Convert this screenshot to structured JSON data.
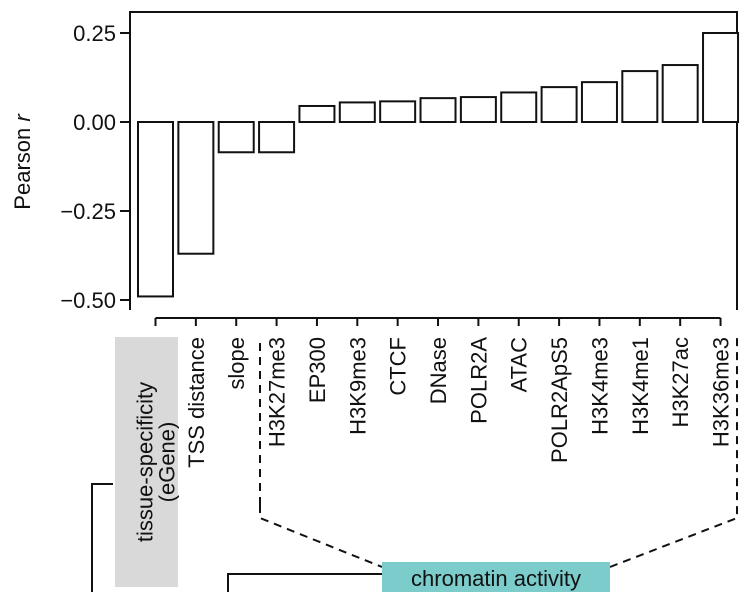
{
  "chart_data": {
    "type": "bar",
    "categories": [
      "tissue-specificity (eGene)",
      "TSS distance",
      "slope",
      "H3K27me3",
      "EP300",
      "H3K9me3",
      "CTCF",
      "DNase",
      "POLR2A",
      "ATAC",
      "POLR2ApS5",
      "H3K4me3",
      "H3K4me1",
      "H3K27ac",
      "H3K36me3"
    ],
    "category_lines": [
      [
        "tissue-specificity",
        "(eGene)"
      ],
      [
        "TSS distance"
      ],
      [
        "slope"
      ],
      [
        "H3K27me3"
      ],
      [
        "EP300"
      ],
      [
        "H3K9me3"
      ],
      [
        "CTCF"
      ],
      [
        "DNase"
      ],
      [
        "POLR2A"
      ],
      [
        "ATAC"
      ],
      [
        "POLR2ApS5"
      ],
      [
        "H3K4me3"
      ],
      [
        "H3K4me1"
      ],
      [
        "H3K27ac"
      ],
      [
        "H3K36me3"
      ]
    ],
    "values": [
      -0.49,
      -0.37,
      -0.085,
      -0.085,
      0.045,
      0.055,
      0.058,
      0.067,
      0.07,
      0.083,
      0.098,
      0.112,
      0.143,
      0.16,
      0.25
    ],
    "title": "",
    "xlabel": "",
    "ylabel": "Pearson r",
    "ylabel_parts": [
      "Pearson ",
      "r"
    ],
    "ylim": [
      -0.52,
      0.27
    ],
    "yticks": [
      -0.5,
      -0.25,
      0.0,
      0.25
    ],
    "ytick_labels": [
      "−0.50",
      "−0.25",
      "0.00",
      "0.25"
    ],
    "grid": false,
    "legend": "none",
    "bar_fill": "#ffffff",
    "bar_stroke": "#111111",
    "groups": [
      {
        "label": "tissue-specificity (eGene)",
        "highlight": "#d9d9d9"
      },
      {
        "label": "chromatin activity",
        "highlight": "#7ccccc",
        "from": "H3K27me3",
        "to": "H3K36me3"
      }
    ]
  }
}
